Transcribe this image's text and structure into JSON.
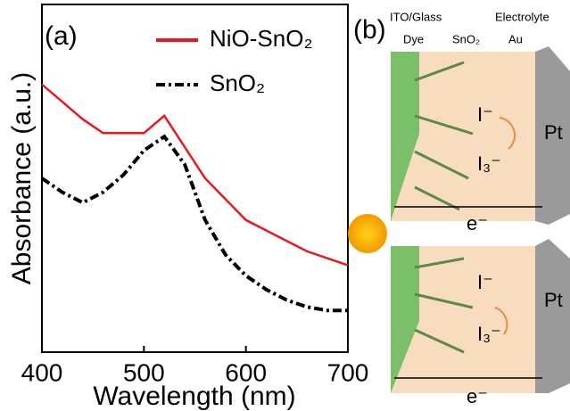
{
  "chart_data": {
    "type": "line",
    "panel_label": "(a)",
    "xlabel": "Wavelength (nm)",
    "ylabel": "Absorbance (a.u.)",
    "x": [
      400,
      420,
      440,
      460,
      480,
      500,
      520,
      540,
      560,
      580,
      600,
      620,
      640,
      660,
      680,
      700
    ],
    "series": [
      {
        "name": "NiO-SnO₂",
        "color": "#e8191e",
        "line_style": "solid",
        "values": [
          0.77,
          0.72,
          0.67,
          0.63,
          0.63,
          0.63,
          0.68,
          0.59,
          0.5,
          0.44,
          0.38,
          0.35,
          0.32,
          0.29,
          0.27,
          0.25
        ]
      },
      {
        "name": "SnO₂",
        "color": "#000000",
        "line_style": "dashdot",
        "values": [
          0.5,
          0.46,
          0.43,
          0.46,
          0.51,
          0.58,
          0.62,
          0.54,
          0.38,
          0.28,
          0.22,
          0.18,
          0.15,
          0.13,
          0.12,
          0.12
        ]
      }
    ],
    "xlim": [
      400,
      700
    ],
    "xticks": [
      400,
      500,
      600,
      700
    ],
    "ylim": [
      0,
      1
    ]
  },
  "diagram": {
    "panel_label": "(b)",
    "ito": "ITO/Glass",
    "electrolyte": "Electrolyte",
    "dye": "Dye",
    "sno2": "SnO₂",
    "au": "Au",
    "top": {
      "iodide": "I⁻",
      "triiodide": "I₃⁻",
      "pt": "Pt",
      "electron": "e⁻"
    },
    "bottom": {
      "iodide": "I⁻",
      "triiodide": "I₃⁻",
      "pt": "Pt",
      "electron": "e⁻"
    }
  }
}
